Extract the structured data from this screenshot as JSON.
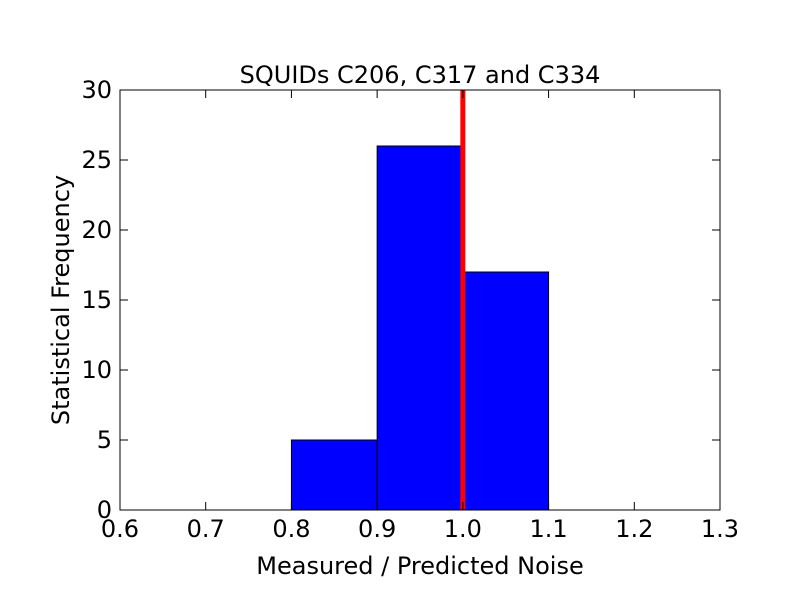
{
  "chart_data": {
    "type": "bar",
    "title": "SQUIDs C206, C317 and C334",
    "xlabel": "Measured / Predicted Noise",
    "ylabel": "Statistical Frequency",
    "xlim": [
      0.6,
      1.3
    ],
    "ylim": [
      0,
      30
    ],
    "grid": false,
    "bins": [
      {
        "x0": 0.8,
        "x1": 0.9,
        "value": 5
      },
      {
        "x0": 0.9,
        "x1": 1.0,
        "value": 26
      },
      {
        "x0": 1.0,
        "x1": 1.1,
        "value": 17
      }
    ],
    "reference_line": {
      "x": 1.0,
      "color": "#ff0000"
    },
    "bar_color": "#0000ff",
    "xticks": [
      0.6,
      0.7,
      0.8,
      0.9,
      1.0,
      1.1,
      1.2,
      1.3
    ],
    "xtick_labels": [
      "0.6",
      "0.7",
      "0.8",
      "0.9",
      "1.0",
      "1.1",
      "1.2",
      "1.3"
    ],
    "yticks": [
      0,
      5,
      10,
      15,
      20,
      25,
      30
    ],
    "ytick_labels": [
      "0",
      "5",
      "10",
      "15",
      "20",
      "25",
      "30"
    ]
  }
}
